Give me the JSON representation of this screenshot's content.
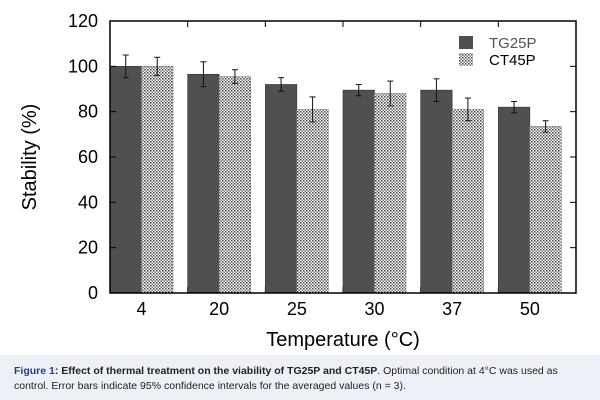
{
  "chart_data": {
    "type": "bar",
    "title": "",
    "xlabel": "Temperature (°C)",
    "ylabel": "Stability (%)",
    "ylim": [
      0,
      120
    ],
    "yticks": [
      "0",
      "20",
      "40",
      "60",
      "80",
      "100",
      "120"
    ],
    "categories": [
      "4",
      "20",
      "25",
      "30",
      "37",
      "50"
    ],
    "legend_position": "top-right",
    "series": [
      {
        "name": "TG25P",
        "values": [
          100,
          96.5,
          92,
          89.5,
          89.5,
          82
        ],
        "errors": [
          5,
          5.5,
          3,
          2.5,
          5,
          2.5
        ],
        "color": "#4f5052"
      },
      {
        "name": "CT45P",
        "values": [
          100,
          95.5,
          81,
          88,
          81,
          73.5
        ],
        "errors": [
          4,
          3,
          5.5,
          5.5,
          5,
          2.5
        ],
        "color": "crosshatch"
      }
    ]
  },
  "caption": {
    "figure_label": "Figure 1",
    "title": ": Effect of thermal treatment on the viability of TG25P and CT45P",
    "text": ". Optimal condition at 4°C was used as control. Error bars indicate 95% confidence intervals for the averaged values (n = 3)."
  }
}
